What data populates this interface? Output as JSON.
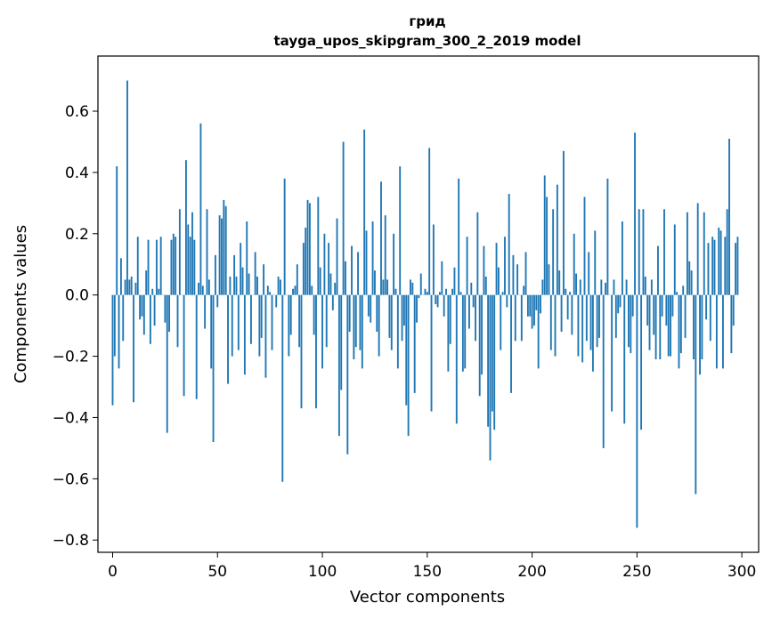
{
  "chart_data": {
    "type": "bar",
    "title": "грид",
    "subtitle": "tayga_upos_skipgram_300_2_2019 model",
    "xlabel": "Vector components",
    "ylabel": "Components values",
    "xlim": [
      -7,
      308
    ],
    "ylim": [
      -0.84,
      0.78
    ],
    "x_ticks": [
      0,
      50,
      100,
      150,
      200,
      250,
      300
    ],
    "x_tick_labels": [
      "0",
      "50",
      "100",
      "150",
      "200",
      "250",
      "300"
    ],
    "y_ticks": [
      -0.8,
      -0.6,
      -0.4,
      -0.2,
      0.0,
      0.2,
      0.4,
      0.6
    ],
    "y_tick_labels": [
      "−0.8",
      "−0.6",
      "−0.4",
      "−0.2",
      "0.0",
      "0.2",
      "0.4",
      "0.6"
    ],
    "bar_color": "#1f77b4",
    "grid": false,
    "values": [
      -0.36,
      -0.2,
      0.42,
      -0.24,
      0.12,
      -0.15,
      0.05,
      0.7,
      0.05,
      0.06,
      -0.35,
      0.04,
      0.19,
      -0.08,
      -0.07,
      -0.13,
      0.08,
      0.18,
      -0.16,
      0.02,
      -0.1,
      0.18,
      0.02,
      0.19,
      0.0,
      -0.09,
      -0.45,
      -0.12,
      0.18,
      0.2,
      0.19,
      -0.17,
      0.28,
      0.0,
      -0.33,
      0.44,
      0.23,
      0.19,
      0.27,
      0.18,
      -0.34,
      0.04,
      0.56,
      0.03,
      -0.11,
      0.28,
      0.05,
      -0.24,
      -0.48,
      0.13,
      -0.04,
      0.26,
      0.25,
      0.31,
      0.29,
      -0.29,
      0.06,
      -0.2,
      0.13,
      0.06,
      -0.18,
      0.17,
      0.09,
      -0.26,
      0.24,
      0.07,
      -0.16,
      0.0,
      0.14,
      0.06,
      -0.2,
      -0.14,
      0.1,
      -0.27,
      0.03,
      0.01,
      -0.18,
      0.0,
      -0.04,
      0.06,
      0.05,
      -0.61,
      0.38,
      0.0,
      -0.2,
      -0.13,
      0.02,
      0.03,
      0.1,
      -0.17,
      -0.37,
      0.17,
      0.22,
      0.31,
      0.3,
      0.03,
      -0.13,
      -0.37,
      0.32,
      0.09,
      -0.24,
      0.2,
      -0.17,
      0.17,
      0.07,
      -0.05,
      0.04,
      0.25,
      -0.46,
      -0.31,
      0.5,
      0.11,
      -0.52,
      -0.12,
      0.16,
      -0.21,
      -0.17,
      0.14,
      -0.18,
      -0.24,
      0.54,
      0.21,
      -0.07,
      -0.09,
      0.24,
      0.08,
      -0.12,
      -0.2,
      0.37,
      0.05,
      0.26,
      0.05,
      -0.14,
      -0.18,
      0.2,
      0.02,
      -0.24,
      0.42,
      -0.15,
      -0.1,
      -0.36,
      -0.46,
      0.05,
      0.04,
      -0.32,
      -0.09,
      -0.01,
      0.07,
      0.0,
      0.02,
      0.01,
      0.48,
      -0.38,
      0.23,
      -0.03,
      -0.04,
      0.01,
      0.11,
      -0.07,
      0.02,
      -0.25,
      -0.16,
      0.02,
      0.09,
      -0.42,
      0.38,
      0.01,
      -0.25,
      -0.24,
      0.19,
      -0.11,
      0.04,
      -0.04,
      -0.15,
      0.27,
      -0.33,
      -0.26,
      0.16,
      0.06,
      -0.43,
      -0.54,
      -0.38,
      -0.44,
      0.17,
      0.09,
      -0.18,
      0.01,
      0.19,
      -0.04,
      0.33,
      -0.32,
      0.13,
      -0.15,
      0.1,
      0.0,
      -0.15,
      0.03,
      0.14,
      -0.07,
      -0.07,
      -0.11,
      -0.1,
      -0.05,
      -0.24,
      -0.06,
      0.05,
      0.39,
      0.32,
      0.1,
      -0.18,
      0.28,
      -0.2,
      0.36,
      0.08,
      -0.12,
      0.47,
      0.02,
      -0.08,
      0.01,
      -0.13,
      0.2,
      0.07,
      -0.2,
      0.05,
      -0.22,
      0.32,
      -0.15,
      0.14,
      -0.18,
      -0.25,
      0.21,
      -0.17,
      -0.14,
      0.05,
      -0.5,
      0.04,
      0.38,
      0.0,
      -0.38,
      0.05,
      -0.14,
      -0.06,
      -0.04,
      0.24,
      -0.42,
      0.05,
      -0.17,
      -0.19,
      -0.07,
      0.53,
      -0.76,
      0.28,
      -0.44,
      0.28,
      0.06,
      -0.1,
      -0.18,
      0.05,
      -0.13,
      -0.21,
      0.16,
      -0.21,
      -0.07,
      0.28,
      -0.1,
      -0.2,
      -0.2,
      -0.07,
      0.23,
      0.01,
      -0.24,
      -0.19,
      0.03,
      -0.14,
      0.27,
      0.11,
      0.08,
      -0.21,
      -0.65,
      0.3,
      -0.26,
      -0.21,
      0.27,
      -0.08,
      0.17,
      -0.15,
      0.19,
      0.18,
      -0.24,
      0.22,
      0.21,
      -0.24,
      0.19,
      0.28,
      0.51,
      -0.19,
      -0.1,
      0.17,
      0.19
    ]
  }
}
